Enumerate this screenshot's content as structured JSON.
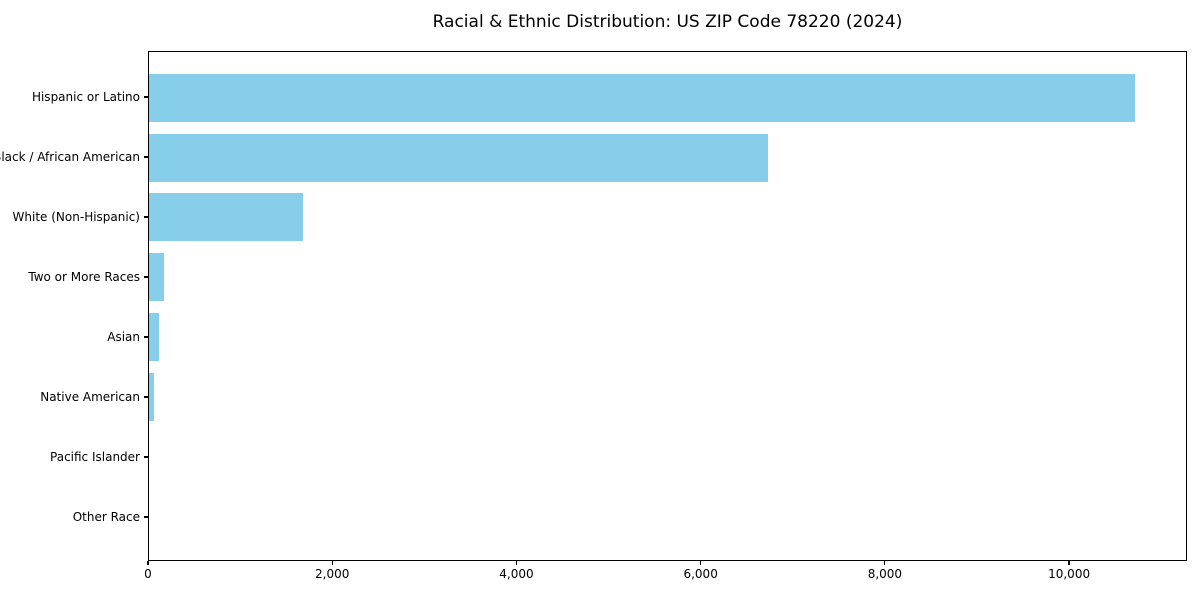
{
  "title": "Racial & Ethnic Distribution: US ZIP Code 78220 (2024)",
  "colors": {
    "bar": "#87CEEB",
    "axis": "#000000",
    "background": "#FFFFFF",
    "text": "#000000"
  },
  "chart_data": {
    "type": "bar",
    "orientation": "horizontal",
    "title": "Racial & Ethnic Distribution: US ZIP Code 78220 (2024)",
    "categories": [
      "Hispanic or Latino",
      "Black / African American",
      "White (Non-Hispanic)",
      "Two or More Races",
      "Asian",
      "Native American",
      "Pacific Islander",
      "Other Race"
    ],
    "values": [
      10730,
      6730,
      1670,
      165,
      110,
      55,
      0,
      0
    ],
    "xlabel": "",
    "ylabel": "",
    "xlim": [
      0,
      11280
    ],
    "xticks": [
      0,
      2000,
      4000,
      6000,
      8000,
      10000
    ],
    "xtick_labels": [
      "0",
      "2,000",
      "4,000",
      "6,000",
      "8,000",
      "10,000"
    ],
    "grid": false,
    "legend": null,
    "bar_color": "#87CEEB",
    "categories_order": "top-to-bottom"
  }
}
